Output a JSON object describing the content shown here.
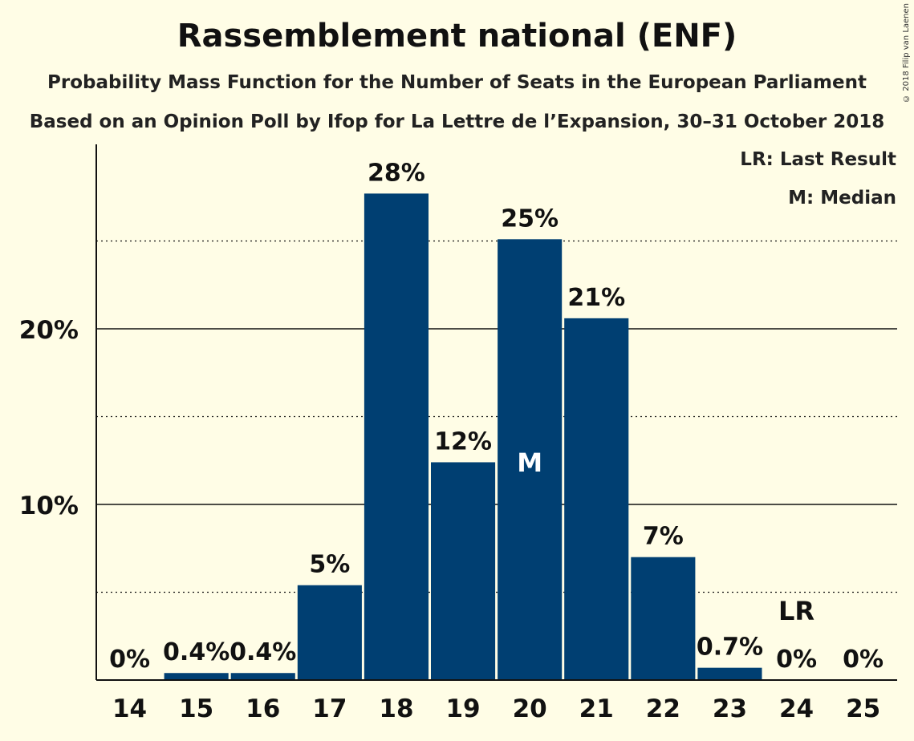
{
  "chart_data": {
    "type": "bar",
    "title": "Rassemblement national (ENF)",
    "subtitle": "Probability Mass Function for the Number of Seats in the European Parliament",
    "subtitle2": "Based on an Opinion Poll by Ifop for La Lettre de l’Expansion, 30–31 October 2018",
    "categories": [
      "14",
      "15",
      "16",
      "17",
      "18",
      "19",
      "20",
      "21",
      "22",
      "23",
      "24",
      "25"
    ],
    "values": [
      0,
      0.4,
      0.4,
      5.4,
      27.7,
      12.4,
      25.1,
      20.6,
      7.0,
      0.7,
      0,
      0
    ],
    "value_labels": [
      "0%",
      "0.4%",
      "0.4%",
      "5%",
      "28%",
      "12%",
      "25%",
      "21%",
      "7%",
      "0.7%",
      "0%",
      "0%"
    ],
    "ylim": [
      0,
      30
    ],
    "yticks": [
      10,
      20
    ],
    "ytick_labels": [
      "10%",
      "20%"
    ],
    "minor_gridlines": [
      5,
      15,
      25
    ],
    "median_category": "20",
    "median_marker": "M",
    "last_result_category": "24",
    "last_result_marker": "LR",
    "legend": [
      "LR: Last Result",
      "M: Median"
    ],
    "bar_color": "#003f72",
    "copyright": "© 2018 Filip van Laenen"
  }
}
